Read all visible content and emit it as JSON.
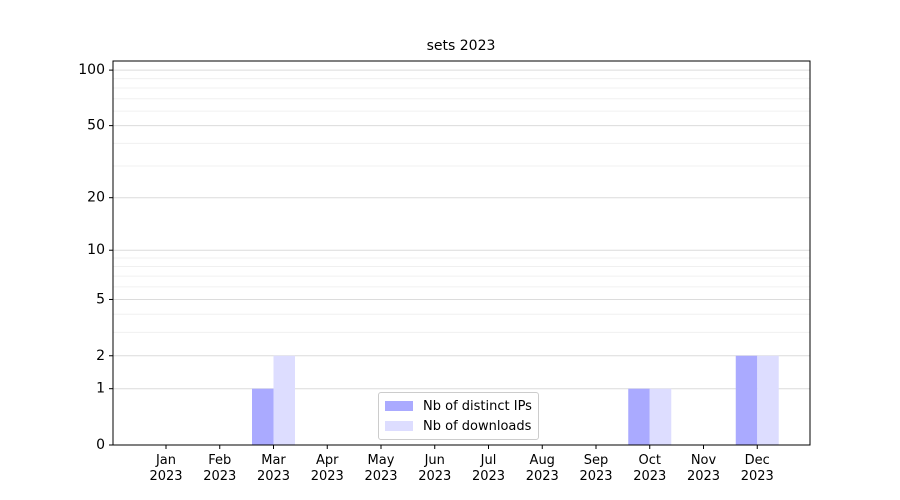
{
  "chart_data": {
    "type": "bar",
    "title": "sets 2023",
    "categories": [
      "Jan\n2023",
      "Feb\n2023",
      "Mar\n2023",
      "Apr\n2023",
      "May\n2023",
      "Jun\n2023",
      "Jul\n2023",
      "Aug\n2023",
      "Sep\n2023",
      "Oct\n2023",
      "Nov\n2023",
      "Dec\n2023"
    ],
    "series": [
      {
        "name": "Nb of distinct IPs",
        "color": "#aaaaff",
        "values": [
          0,
          0,
          1,
          0,
          0,
          0,
          0,
          0,
          0,
          1,
          0,
          2
        ]
      },
      {
        "name": "Nb of downloads",
        "color": "#ddddff",
        "values": [
          0,
          0,
          2,
          0,
          0,
          0,
          0,
          0,
          0,
          1,
          0,
          2
        ]
      }
    ],
    "yscale": "log1p",
    "ylim": [
      0,
      112
    ],
    "yticks": [
      0,
      1,
      2,
      5,
      10,
      20,
      50,
      100
    ],
    "minor_yticks": [
      3,
      4,
      6,
      7,
      8,
      9,
      30,
      40,
      60,
      70,
      80,
      90
    ],
    "grid": true,
    "legend": "lower center"
  }
}
